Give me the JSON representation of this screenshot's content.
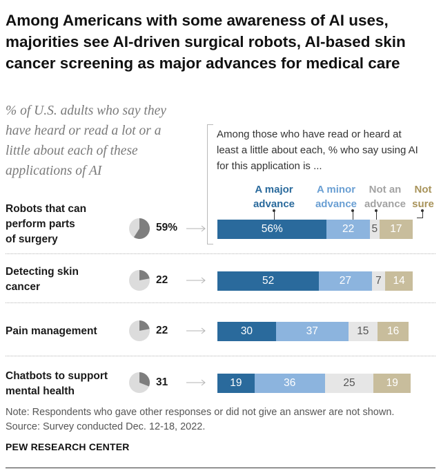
{
  "title": "Among Americans with some awareness of AI uses, majorities see AI-driven surgical robots, AI-based skin cancer screening as major advances for medical care",
  "subtitle": "% of U.S. adults who say they have heard or read a lot or a little about each of these applications of AI",
  "subnote": "Among those who have read or heard at least a little about each, % who say using AI for this application is ...",
  "colors": {
    "major": "#2a6a9c",
    "minor": "#8cb4de",
    "not_advance": "#e6e6e6",
    "not_sure": "#c8bd9c",
    "pie_fill": "#7e7e7e",
    "pie_bg": "#dcdcdc",
    "legend_major": "#2a6a9c",
    "legend_minor": "#6a9fd3",
    "legend_not_advance": "#a3a3a3",
    "legend_not_sure": "#a8935a"
  },
  "chart_data": {
    "type": "bar",
    "orientation": "horizontal",
    "stacked": true,
    "categories": [
      "Robots that can perform parts of surgery",
      "Detecting skin cancer",
      "Pain management",
      "Chatbots to support mental health"
    ],
    "awareness_pct": [
      59,
      22,
      22,
      31
    ],
    "awareness_labels": [
      "59%",
      "22",
      "22",
      "31"
    ],
    "series": [
      {
        "key": "major",
        "name": "A major advance",
        "values": [
          56,
          52,
          30,
          19
        ],
        "labels": [
          "56%",
          "52",
          "30",
          "19"
        ]
      },
      {
        "key": "minor",
        "name": "A minor advance",
        "values": [
          22,
          27,
          37,
          36
        ],
        "labels": [
          "22",
          "27",
          "37",
          "36"
        ]
      },
      {
        "key": "not_advance",
        "name": "Not an advance",
        "values": [
          5,
          7,
          15,
          25
        ],
        "labels": [
          "5",
          "7",
          "15",
          "25"
        ]
      },
      {
        "key": "not_sure",
        "name": "Not sure",
        "values": [
          17,
          14,
          16,
          19
        ],
        "labels": [
          "17",
          "14",
          "16",
          "19"
        ]
      }
    ],
    "xlim": [
      0,
      100
    ]
  },
  "legend": {
    "major": [
      "A major",
      "advance"
    ],
    "minor": [
      "A minor",
      "advance"
    ],
    "not_advance": [
      "Not an",
      "advance"
    ],
    "not_sure": [
      "Not",
      "sure"
    ]
  },
  "rows": [
    {
      "label_lines": [
        "Robots that can",
        "perform parts",
        "of surgery"
      ]
    },
    {
      "label_lines": [
        "Detecting skin",
        "cancer"
      ]
    },
    {
      "label_lines": [
        "Pain management"
      ]
    },
    {
      "label_lines": [
        "Chatbots to support",
        "mental health"
      ]
    }
  ],
  "footnote": {
    "note": "Note: Respondents who gave other responses or did not give an answer are not shown.",
    "source": "Source: Survey conducted Dec. 12-18, 2022."
  },
  "brand": "PEW RESEARCH CENTER"
}
